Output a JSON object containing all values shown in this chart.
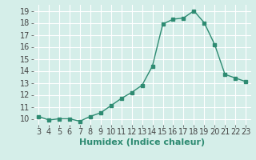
{
  "x": [
    3,
    4,
    5,
    6,
    7,
    8,
    9,
    10,
    11,
    12,
    13,
    14,
    15,
    16,
    17,
    18,
    19,
    20,
    21,
    22,
    23
  ],
  "y": [
    10.2,
    9.9,
    10.0,
    10.0,
    9.8,
    10.2,
    10.5,
    11.1,
    11.7,
    12.2,
    12.8,
    14.4,
    17.9,
    18.3,
    18.4,
    19.0,
    18.0,
    16.2,
    13.7,
    13.4,
    13.1
  ],
  "line_color": "#2e8b72",
  "marker": "s",
  "marker_size": 2.5,
  "xlabel": "Humidex (Indice chaleur)",
  "xlim": [
    2.5,
    23.5
  ],
  "ylim": [
    9.5,
    19.5
  ],
  "yticks": [
    10,
    11,
    12,
    13,
    14,
    15,
    16,
    17,
    18,
    19
  ],
  "xticks": [
    3,
    4,
    5,
    6,
    7,
    8,
    9,
    10,
    11,
    12,
    13,
    14,
    15,
    16,
    17,
    18,
    19,
    20,
    21,
    22,
    23
  ],
  "bg_color": "#d5eee9",
  "grid_color": "#ffffff",
  "label_color": "#2e8b72",
  "xlabel_fontsize": 8,
  "tick_fontsize": 7
}
